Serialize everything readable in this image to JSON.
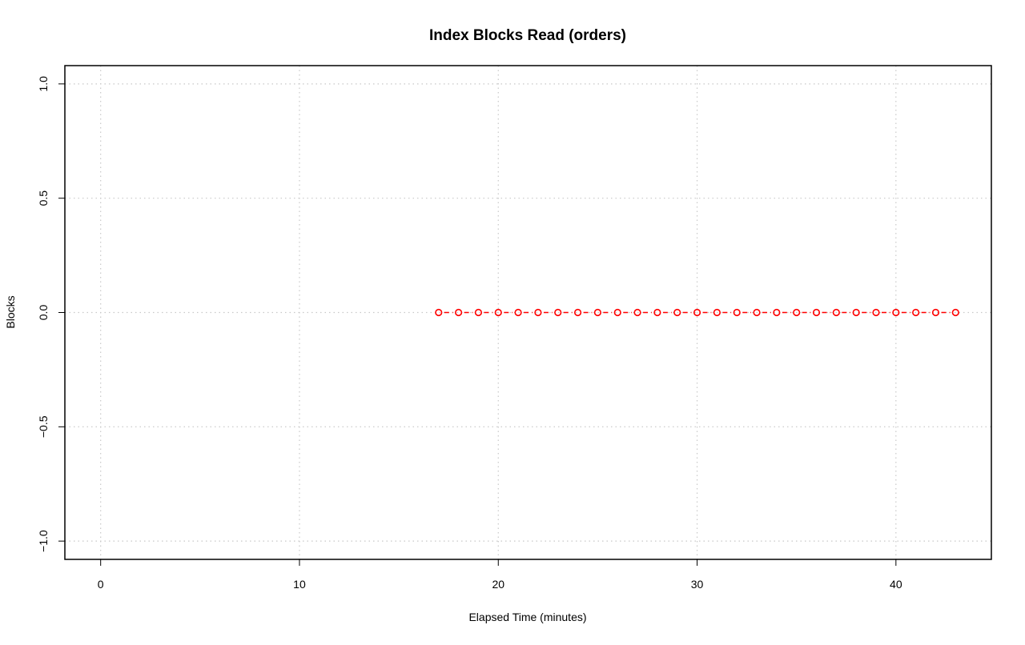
{
  "chart_data": {
    "type": "line",
    "title": "Index Blocks Read (orders)",
    "xlabel": "Elapsed Time (minutes)",
    "ylabel": "Blocks",
    "xlim": [
      -1.8,
      44.8
    ],
    "ylim": [
      -1.08,
      1.08
    ],
    "x_ticks": [
      0,
      10,
      20,
      30,
      40
    ],
    "y_ticks": [
      -1.0,
      -0.5,
      0.0,
      0.5,
      1.0
    ],
    "x_tick_labels": [
      "0",
      "10",
      "20",
      "30",
      "40"
    ],
    "y_tick_labels": [
      "−1.0",
      "−0.5",
      "0.0",
      "0.5",
      "1.0"
    ],
    "grid": true,
    "legend": "none",
    "series": [
      {
        "color": "#ff0000",
        "line_style": "dashed",
        "marker": "open-circle",
        "x": [
          17,
          18,
          19,
          20,
          21,
          22,
          23,
          24,
          25,
          26,
          27,
          28,
          29,
          30,
          31,
          32,
          33,
          34,
          35,
          36,
          37,
          38,
          39,
          40,
          41,
          42,
          43
        ],
        "y": [
          0,
          0,
          0,
          0,
          0,
          0,
          0,
          0,
          0,
          0,
          0,
          0,
          0,
          0,
          0,
          0,
          0,
          0,
          0,
          0,
          0,
          0,
          0,
          0,
          0,
          0,
          0
        ]
      }
    ]
  }
}
